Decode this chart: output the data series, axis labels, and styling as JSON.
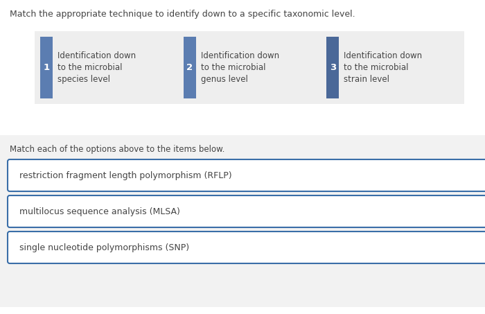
{
  "title": "Match the appropriate technique to identify down to a specific taxonomic level.",
  "subtitle": "Match each of the options above to the items below.",
  "options": [
    {
      "number": "1",
      "text": "Identification down\nto the microbial\nspecies level"
    },
    {
      "number": "2",
      "text": "Identification down\nto the microbial\ngenus level"
    },
    {
      "number": "3",
      "text": "Identification down\nto the microbial\nstrain level"
    }
  ],
  "items": [
    "restriction fragment length polymorphism (RFLP)",
    "multilocus sequence analysis (MLSA)",
    "single nucleotide polymorphisms (SNP)"
  ],
  "bg_color": "#ffffff",
  "panel_bg": "#eeeeee",
  "blue_color": "#5b7db1",
  "blue_dark": "#4a6898",
  "item_border": "#3a6ea8",
  "item_bg": "#ffffff",
  "text_color": "#444444",
  "title_fontsize": 9.0,
  "subtitle_fontsize": 8.5,
  "option_fontsize": 8.5,
  "item_fontsize": 9.0
}
